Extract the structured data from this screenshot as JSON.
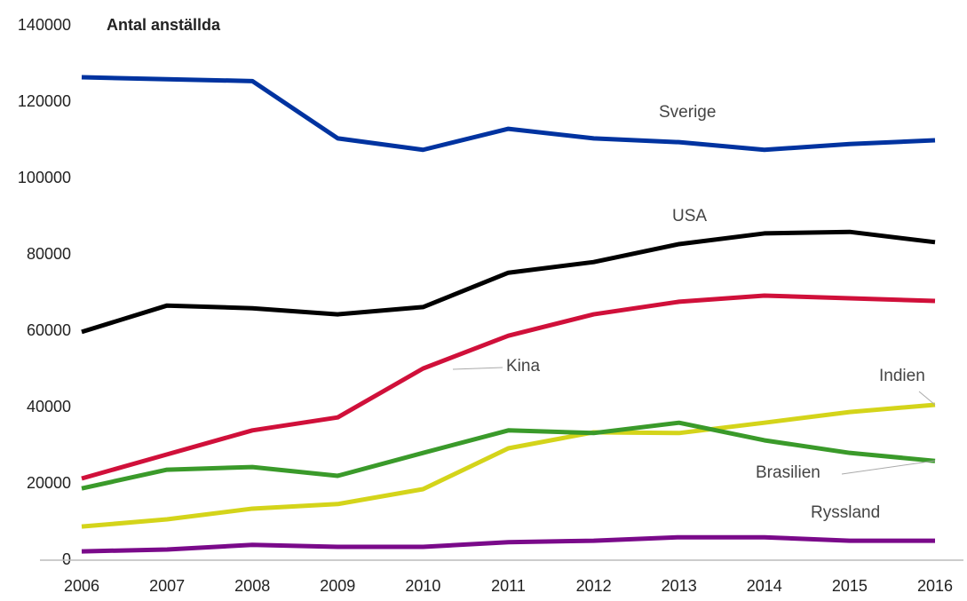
{
  "chart_data": {
    "type": "line",
    "title": "Antal anställda",
    "categories": [
      "2006",
      "2007",
      "2008",
      "2009",
      "2010",
      "2011",
      "2012",
      "2013",
      "2014",
      "2015",
      "2016"
    ],
    "series": [
      {
        "name": "Sverige",
        "color": "#0033a0",
        "values": [
          126500,
          126000,
          125500,
          110500,
          107500,
          113000,
          110500,
          109500,
          107500,
          109000,
          110000
        ]
      },
      {
        "name": "USA",
        "color": "#000000",
        "values": [
          59800,
          66700,
          66000,
          64400,
          66300,
          75300,
          78100,
          82800,
          85600,
          86000,
          83300
        ]
      },
      {
        "name": "Kina",
        "color": "#d0103a",
        "values": [
          21400,
          27700,
          34000,
          37400,
          50200,
          58800,
          64400,
          67700,
          69300,
          68600,
          67900
        ]
      },
      {
        "name": "Indien",
        "color": "#d4d41a",
        "values": [
          8800,
          10700,
          13500,
          14700,
          18600,
          29300,
          33500,
          33300,
          36000,
          38800,
          40700
        ]
      },
      {
        "name": "Brasilien",
        "color": "#3a9a2a",
        "values": [
          18800,
          23700,
          24400,
          22100,
          28100,
          34000,
          33300,
          36000,
          31400,
          28100,
          26000
        ]
      },
      {
        "name": "Ryssland",
        "color": "#7a0a8a",
        "values": [
          2300,
          2800,
          4000,
          3500,
          3500,
          4700,
          5100,
          6000,
          6000,
          5100,
          5100
        ]
      }
    ],
    "ylim": [
      0,
      140000
    ],
    "yticks": [
      0,
      20000,
      40000,
      60000,
      80000,
      100000,
      120000,
      140000
    ],
    "grid": false
  }
}
